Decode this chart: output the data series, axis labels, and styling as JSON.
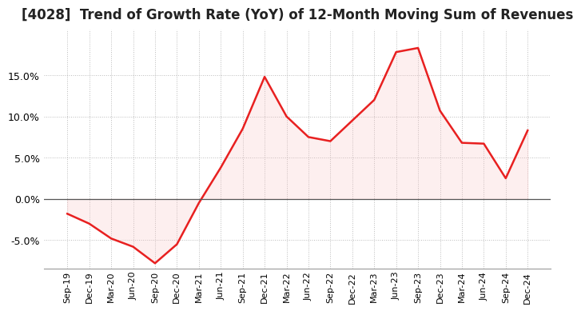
{
  "title": "[4028]  Trend of Growth Rate (YoY) of 12-Month Moving Sum of Revenues",
  "title_fontsize": 12,
  "line_color": "#e82020",
  "fill_color": "#f8c0c0",
  "background_color": "#ffffff",
  "grid_color": "#aaaaaa",
  "zero_line_color": "#555555",
  "ylim": [
    -0.085,
    0.205
  ],
  "yticks": [
    -0.05,
    0.0,
    0.05,
    0.1,
    0.15
  ],
  "x_labels": [
    "Sep-19",
    "Dec-19",
    "Mar-20",
    "Jun-20",
    "Sep-20",
    "Dec-20",
    "Mar-21",
    "Jun-21",
    "Sep-21",
    "Dec-21",
    "Mar-22",
    "Jun-22",
    "Sep-22",
    "Dec-22",
    "Mar-23",
    "Jun-23",
    "Sep-23",
    "Dec-23",
    "Mar-24",
    "Jun-24",
    "Sep-24",
    "Dec-24"
  ],
  "values": [
    -0.018,
    -0.03,
    -0.048,
    -0.058,
    -0.078,
    -0.055,
    -0.005,
    0.038,
    0.085,
    0.148,
    0.1,
    0.075,
    0.07,
    0.095,
    0.12,
    0.178,
    0.183,
    0.107,
    0.068,
    0.067,
    0.025,
    0.083
  ]
}
